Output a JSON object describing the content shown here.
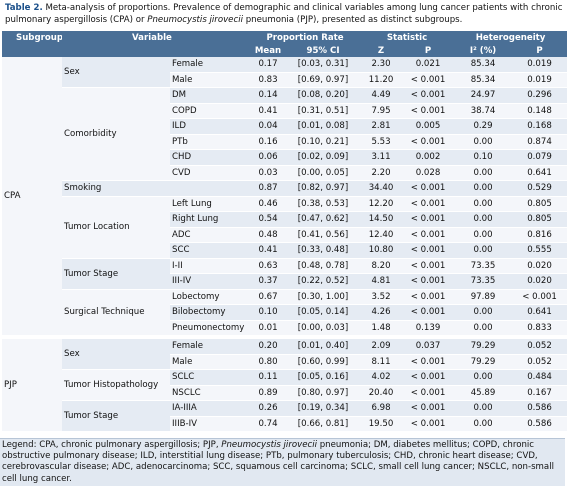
{
  "caption": {
    "label": "Table 2.",
    "text_before": " Meta-analysis of proportions. Prevalence of demographic and clinical variables among lung cancer patients with chronic pulmonary aspergillosis (CPA) or ",
    "italic": "Pneumocystis jirovecii",
    "text_after": " pneumonia (PJP), presented as distinct subgroups."
  },
  "headers": {
    "subgroup": "Subgroup",
    "variable": "Variable",
    "proportion_rate": "Proportion Rate",
    "statistic": "Statistic",
    "heterogeneity": "Heterogeneity",
    "mean": "Mean",
    "ci": "95% CI",
    "z": "Z",
    "p": "P",
    "i2": "I² (%)",
    "p2": "P"
  },
  "subgroups": [
    {
      "name": "CPA",
      "categories": [
        {
          "name": "Sex",
          "rows": [
            {
              "sub": "Female",
              "mean": "0.17",
              "ci": "[0.03, 0.31]",
              "z": "2.30",
              "p": "0.021",
              "i2": "85.34",
              "hp": "0.019"
            },
            {
              "sub": "Male",
              "mean": "0.83",
              "ci": "[0.69, 0.97]",
              "z": "11.20",
              "p": "< 0.001",
              "i2": "85.34",
              "hp": "0.019"
            }
          ]
        },
        {
          "name": "Comorbidity",
          "rows": [
            {
              "sub": "DM",
              "mean": "0.14",
              "ci": "[0.08, 0.20]",
              "z": "4.49",
              "p": "< 0.001",
              "i2": "24.97",
              "hp": "0.296"
            },
            {
              "sub": "COPD",
              "mean": "0.41",
              "ci": "[0.31, 0.51]",
              "z": "7.95",
              "p": "< 0.001",
              "i2": "38.74",
              "hp": "0.148"
            },
            {
              "sub": "ILD",
              "mean": "0.04",
              "ci": "[0.01, 0.08]",
              "z": "2.81",
              "p": "0.005",
              "i2": "0.29",
              "hp": "0.168"
            },
            {
              "sub": "PTb",
              "mean": "0.16",
              "ci": "[0.10, 0.21]",
              "z": "5.53",
              "p": "< 0.001",
              "i2": "0.00",
              "hp": "0.874"
            },
            {
              "sub": "CHD",
              "mean": "0.06",
              "ci": "[0.02, 0.09]",
              "z": "3.11",
              "p": "0.002",
              "i2": "0.10",
              "hp": "0.079"
            },
            {
              "sub": "CVD",
              "mean": "0.03",
              "ci": "[0.00, 0.05]",
              "z": "2.20",
              "p": "0.028",
              "i2": "0.00",
              "hp": "0.641"
            }
          ]
        },
        {
          "name": "Smoking",
          "rows": [
            {
              "sub": "",
              "mean": "0.87",
              "ci": "[0.82, 0.97]",
              "z": "34.40",
              "p": "< 0.001",
              "i2": "0.00",
              "hp": "0.529"
            }
          ]
        },
        {
          "name": "Tumor Location",
          "rows": [
            {
              "sub": "Left Lung",
              "mean": "0.46",
              "ci": "[0.38, 0.53]",
              "z": "12.20",
              "p": "< 0.001",
              "i2": "0.00",
              "hp": "0.805"
            },
            {
              "sub": "Right Lung",
              "mean": "0.54",
              "ci": "[0.47, 0.62]",
              "z": "14.50",
              "p": "< 0.001",
              "i2": "0.00",
              "hp": "0.805"
            },
            {
              "sub": "ADC",
              "mean": "0.48",
              "ci": "[0.41, 0.56]",
              "z": "12.40",
              "p": "< 0.001",
              "i2": "0.00",
              "hp": "0.816"
            },
            {
              "sub": "SCC",
              "mean": "0.41",
              "ci": "[0.33, 0.48]",
              "z": "10.80",
              "p": "< 0.001",
              "i2": "0.00",
              "hp": "0.555"
            }
          ]
        },
        {
          "name": "Tumor Stage",
          "rows": [
            {
              "sub": "I-II",
              "mean": "0.63",
              "ci": "[0.48, 0.78]",
              "z": "8.20",
              "p": "< 0.001",
              "i2": "73.35",
              "hp": "0.020"
            },
            {
              "sub": "III-IV",
              "mean": "0.37",
              "ci": "[0.22, 0.52]",
              "z": "4.81",
              "p": "< 0.001",
              "i2": "73.35",
              "hp": "0.020"
            }
          ]
        },
        {
          "name": "Surgical Technique",
          "rows": [
            {
              "sub": "Lobectomy",
              "mean": "0.67",
              "ci": "[0.30, 1.00]",
              "z": "3.52",
              "p": "< 0.001",
              "i2": "97.89",
              "hp": "< 0.001"
            },
            {
              "sub": "Bilobectomy",
              "mean": "0.10",
              "ci": "[0.05, 0.14]",
              "z": "4.26",
              "p": "< 0.001",
              "i2": "0.00",
              "hp": "0.641"
            },
            {
              "sub": "Pneumonectomy",
              "mean": "0.01",
              "ci": "[0.00, 0.03]",
              "z": "1.48",
              "p": "0.139",
              "i2": "0.00",
              "hp": "0.833"
            }
          ]
        }
      ]
    },
    {
      "name": "PJP",
      "categories": [
        {
          "name": "Sex",
          "rows": [
            {
              "sub": "Female",
              "mean": "0.20",
              "ci": "[0.01, 0.40]",
              "z": "2.09",
              "p": "0.037",
              "i2": "79.29",
              "hp": "0.052"
            },
            {
              "sub": "Male",
              "mean": "0.80",
              "ci": "[0.60, 0.99]",
              "z": "8.11",
              "p": "< 0.001",
              "i2": "79.29",
              "hp": "0.052"
            }
          ]
        },
        {
          "name": "Tumor Histopathology",
          "rows": [
            {
              "sub": "SCLC",
              "mean": "0.11",
              "ci": "[0.05, 0.16]",
              "z": "4.02",
              "p": "< 0.001",
              "i2": "0.00",
              "hp": "0.484"
            },
            {
              "sub": "NSCLC",
              "mean": "0.89",
              "ci": "[0.80, 0.97]",
              "z": "20.40",
              "p": "< 0.001",
              "i2": "45.89",
              "hp": "0.167"
            }
          ]
        },
        {
          "name": "Tumor Stage",
          "rows": [
            {
              "sub": "IA-IIIA",
              "mean": "0.26",
              "ci": "[0.19, 0.34]",
              "z": "6.98",
              "p": "< 0.001",
              "i2": "0.00",
              "hp": "0.586"
            },
            {
              "sub": "IIIB-IV",
              "mean": "0.74",
              "ci": "[0.66, 0.81]",
              "z": "19.50",
              "p": "< 0.001",
              "i2": "0.00",
              "hp": "0.586"
            }
          ]
        }
      ]
    }
  ],
  "legend": {
    "before": "Legend: CPA, chronic pulmonary aspergillosis; PJP, ",
    "italic": "Pneumocystis jirovecii",
    "after": " pneumonia; DM, diabetes mellitus; COPD, chronic obstructive pulmonary disease; ILD, interstitial lung disease; PTb, pulmonary tuberculosis; CHD, chronic heart disease; CVD, cerebrovascular disease; ADC, adenocarcinoma; SCC, squamous cell carcinoma; SCLC, small cell lung cancer; NSCLC, non-small cell lung cancer."
  }
}
